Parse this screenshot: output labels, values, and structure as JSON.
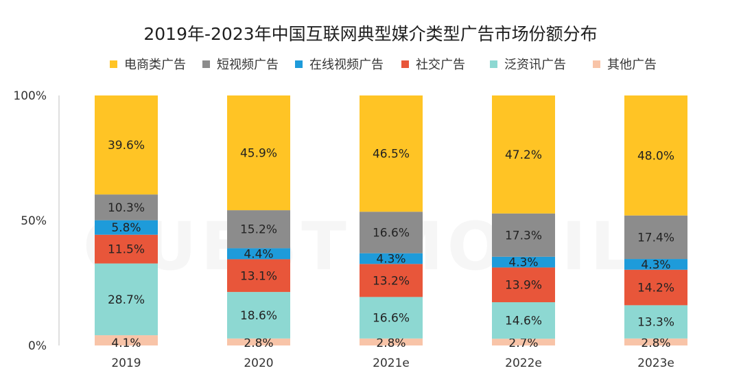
{
  "chart_data": {
    "type": "bar",
    "stacked": true,
    "title": "2019年-2023年中国互联网典型媒介类型广告市场份额分布",
    "categories": [
      "2019",
      "2020",
      "2021e",
      "2022e",
      "2023e"
    ],
    "y_ticks": [
      "0%",
      "50%",
      "100%"
    ],
    "ylim": [
      0,
      100
    ],
    "legend_position": "top",
    "watermark": "QUEST MOBILE",
    "series": [
      {
        "name": "其他广告",
        "color": "#F8C4A8",
        "values": [
          4.1,
          2.8,
          2.8,
          2.7,
          2.8
        ],
        "labels": [
          "4.1%",
          "2.8%",
          "2.8%",
          "2.7%",
          "2.8%"
        ]
      },
      {
        "name": "泛资讯广告",
        "color": "#8DD8D2",
        "values": [
          28.7,
          18.6,
          16.6,
          14.6,
          13.3
        ],
        "labels": [
          "28.7%",
          "18.6%",
          "16.6%",
          "14.6%",
          "13.3%"
        ]
      },
      {
        "name": "社交广告",
        "color": "#E8563A",
        "values": [
          11.5,
          13.1,
          13.2,
          13.9,
          14.2
        ],
        "labels": [
          "11.5%",
          "13.1%",
          "13.2%",
          "13.9%",
          "14.2%"
        ]
      },
      {
        "name": "在线视频广告",
        "color": "#1E9BDA",
        "values": [
          5.8,
          4.4,
          4.3,
          4.3,
          4.3
        ],
        "labels": [
          "5.8%",
          "4.4%",
          "4.3%",
          "4.3%",
          "4.3%"
        ]
      },
      {
        "name": "短视频广告",
        "color": "#8C8C8C",
        "values": [
          10.3,
          15.2,
          16.6,
          17.3,
          17.4
        ],
        "labels": [
          "10.3%",
          "15.2%",
          "16.6%",
          "17.3%",
          "17.4%"
        ]
      },
      {
        "name": "电商类广告",
        "color": "#FFC425",
        "values": [
          39.6,
          45.9,
          46.5,
          47.2,
          48.0
        ],
        "labels": [
          "39.6%",
          "45.9%",
          "46.5%",
          "47.2%",
          "48.0%"
        ]
      }
    ],
    "legend_order": [
      "电商类广告",
      "短视频广告",
      "在线视频广告",
      "社交广告",
      "泛资讯广告",
      "其他广告"
    ]
  }
}
